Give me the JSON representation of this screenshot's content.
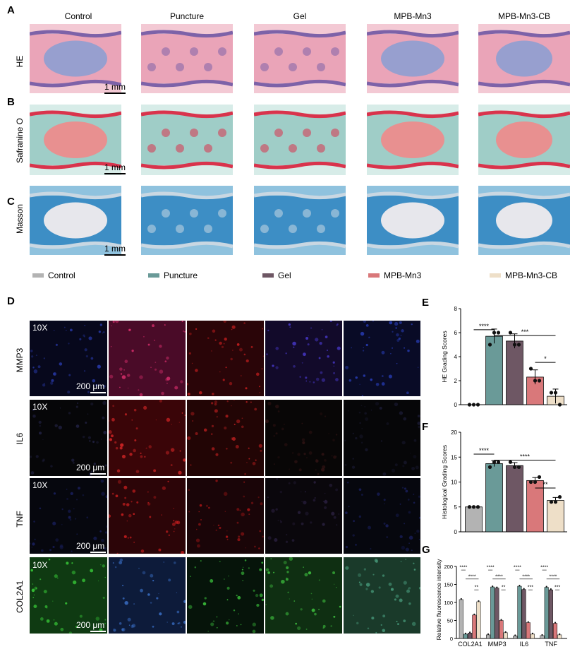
{
  "panels": {
    "A": "A",
    "B": "B",
    "C": "C",
    "D": "D",
    "E": "E",
    "F": "F",
    "G": "G"
  },
  "columns": [
    "Control",
    "Puncture",
    "Gel",
    "MPB-Mn3",
    "MPB-Mn3-CB"
  ],
  "stains": [
    "HE",
    "Safranine O",
    "Masson"
  ],
  "scale_bar_top": "1 mm",
  "legend": [
    {
      "name": "Control",
      "color": "#b3b3b3"
    },
    {
      "name": "Puncture",
      "color": "#6a9a98"
    },
    {
      "name": "Gel",
      "color": "#6e5764"
    },
    {
      "name": "MPB-Mn3",
      "color": "#d9787a"
    },
    {
      "name": "MPB-Mn3-CB",
      "color": "#eedfc8"
    }
  ],
  "fluor": {
    "markers": [
      "MMP3",
      "IL6",
      "TNF",
      "COL2A1"
    ],
    "magnification": "10X",
    "scale_bar": "200 μm"
  },
  "chart_data": [
    {
      "panel": "E",
      "type": "bar",
      "categories": [
        "Control",
        "Puncture",
        "Gel",
        "MPB-Mn3",
        "MPB-Mn3-CB"
      ],
      "values": [
        0,
        5.7,
        5.3,
        2.3,
        0.7
      ],
      "errors": [
        0,
        0.6,
        0.6,
        0.6,
        0.6
      ],
      "points": [
        [
          0,
          0,
          0
        ],
        [
          5,
          6,
          6
        ],
        [
          6,
          5,
          5
        ],
        [
          3,
          2,
          2
        ],
        [
          1,
          1,
          0
        ]
      ],
      "ylabel": "HE Grading Scores",
      "ylim": [
        0,
        8
      ],
      "yticks": [
        0,
        2,
        4,
        6,
        8
      ],
      "significance": [
        {
          "from": 0,
          "to": 1,
          "label": "****"
        },
        {
          "from": 1,
          "to": 4,
          "label": "***"
        },
        {
          "from": 3,
          "to": 4,
          "label": "*"
        }
      ]
    },
    {
      "panel": "F",
      "type": "bar",
      "categories": [
        "Control",
        "Puncture",
        "Gel",
        "MPB-Mn3",
        "MPB-Mn3-CB"
      ],
      "values": [
        5,
        13.7,
        13.3,
        10.3,
        6.3
      ],
      "errors": [
        0,
        0.6,
        0.6,
        0.6,
        0.6
      ],
      "points": [
        [
          5,
          5,
          5
        ],
        [
          13,
          14,
          14
        ],
        [
          14,
          13,
          13
        ],
        [
          10,
          10,
          11
        ],
        [
          6,
          6,
          7
        ]
      ],
      "ylabel": "Histological Grading Scores",
      "ylim": [
        0,
        20
      ],
      "yticks": [
        0,
        5,
        10,
        15,
        20
      ],
      "significance": [
        {
          "from": 0,
          "to": 1,
          "label": "****"
        },
        {
          "from": 1,
          "to": 4,
          "label": "****"
        },
        {
          "from": 3,
          "to": 4,
          "label": "**"
        }
      ]
    },
    {
      "panel": "G",
      "type": "bar",
      "categories": [
        "COL2A1",
        "MMP3",
        "IL6",
        "TNF"
      ],
      "series": [
        {
          "name": "Control",
          "values": [
            108,
            10,
            7,
            8
          ]
        },
        {
          "name": "Puncture",
          "values": [
            12,
            143,
            145,
            142
          ]
        },
        {
          "name": "Gel",
          "values": [
            15,
            140,
            136,
            135
          ]
        },
        {
          "name": "MPB-Mn3",
          "values": [
            65,
            50,
            44,
            42
          ]
        },
        {
          "name": "MPB-Mn3-CB",
          "values": [
            102,
            16,
            12,
            10
          ]
        }
      ],
      "ylabel": "Relative fluorescence intensity",
      "ylim": [
        0,
        200
      ],
      "yticks": [
        0,
        50,
        100,
        150,
        200
      ],
      "significance_labels": [
        "****",
        "****",
        "**",
        "****",
        "****",
        "**",
        "****",
        "****",
        "***",
        "****",
        "****",
        "***"
      ]
    }
  ]
}
